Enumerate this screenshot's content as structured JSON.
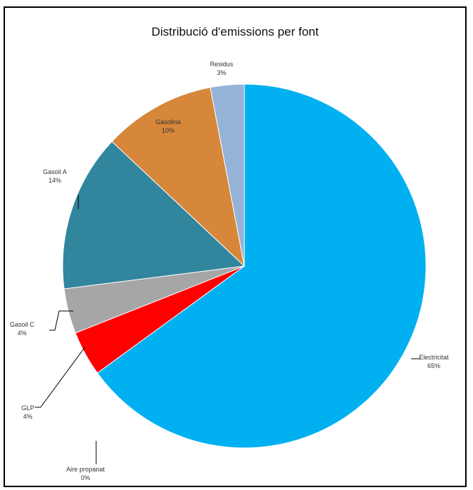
{
  "chart_data": {
    "type": "pie",
    "title": "Distribució d'emissions per font",
    "series": [
      {
        "name": "",
        "slices": [
          {
            "label": "Electricitat",
            "value": 65,
            "percent_label": "65%",
            "color": "#00B0F0"
          },
          {
            "label": "Aire propanat",
            "value": 0,
            "percent_label": "0%",
            "color": "#FFC000"
          },
          {
            "label": "GLP",
            "value": 4,
            "percent_label": "4%",
            "color": "#FF0000"
          },
          {
            "label": "Gasoil C",
            "value": 4,
            "percent_label": "4%",
            "color": "#A6A6A6"
          },
          {
            "label": "Gasoil A",
            "value": 14,
            "percent_label": "14%",
            "color": "#31859C"
          },
          {
            "label": "Gasolina",
            "value": 10,
            "percent_label": "10%",
            "color": "#D6873A"
          },
          {
            "label": "Residus",
            "value": 3,
            "percent_label": "3%",
            "color": "#95B3D7"
          }
        ]
      }
    ],
    "start_angle": "12 o'clock",
    "direction": "clockwise",
    "legend": "none",
    "data_labels": "category name and percentage",
    "border_color": "#000000"
  }
}
